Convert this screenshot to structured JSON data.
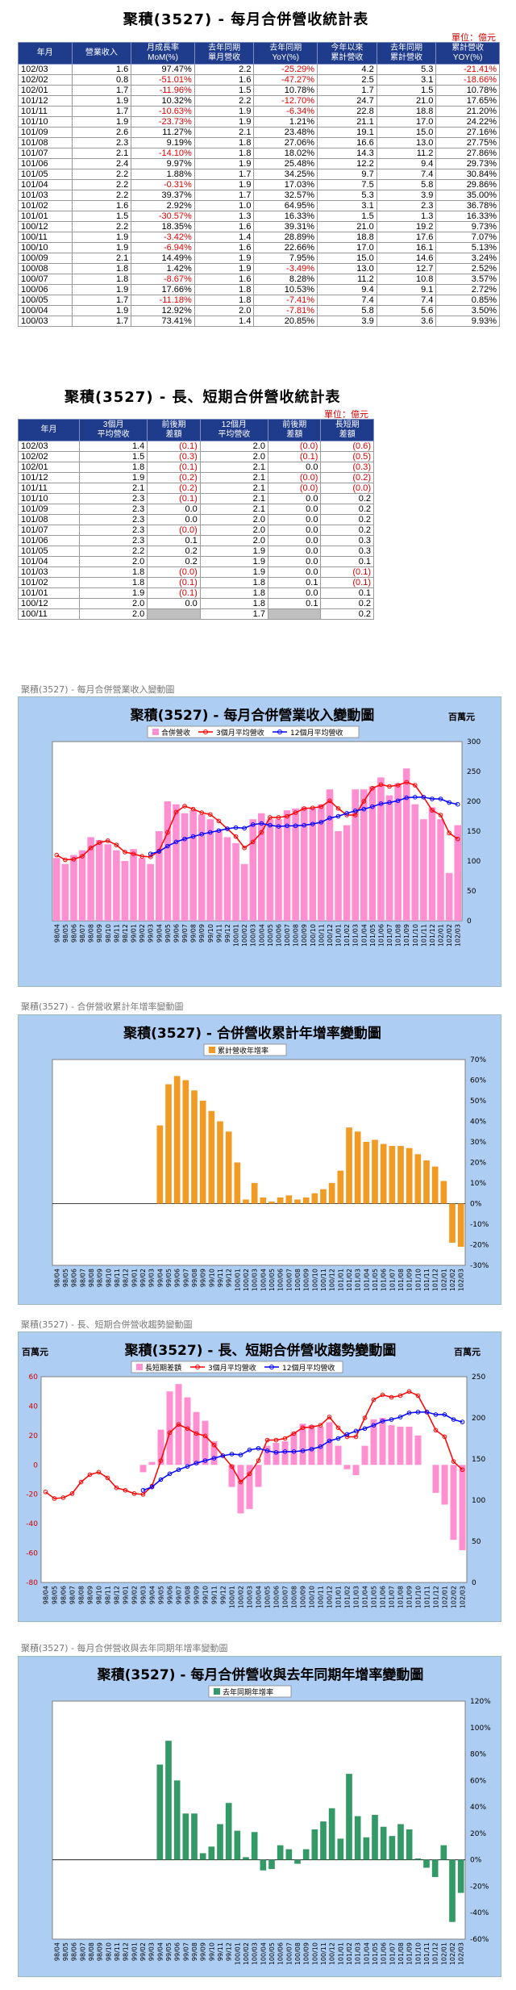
{
  "table1": {
    "title": "聚積(3527)  - 每月合併營收統計表",
    "unit": "單位：億元",
    "headers": [
      "年月",
      "營業收入",
      "月成長率\nMoM(%)",
      "去年同期\n單月營收",
      "去年同期\nYoY(%)",
      "今年以來\n累計營收",
      "去年同期\n累計營收",
      "累計營收\nYOY(%)"
    ],
    "rows": [
      [
        "102/03",
        "1.6",
        "97.47%",
        "2.2",
        "-25.29%",
        "4.2",
        "5.3",
        "-21.41%"
      ],
      [
        "102/02",
        "0.8",
        "-51.01%",
        "1.6",
        "-47.27%",
        "2.5",
        "3.1",
        "-18.66%"
      ],
      [
        "102/01",
        "1.7",
        "-11.96%",
        "1.5",
        "10.78%",
        "1.7",
        "1.5",
        "10.78%"
      ],
      [
        "101/12",
        "1.9",
        "10.32%",
        "2.2",
        "-12.70%",
        "24.7",
        "21.0",
        "17.65%"
      ],
      [
        "101/11",
        "1.7",
        "-10.63%",
        "1.9",
        "-6.34%",
        "22.8",
        "18.8",
        "21.20%"
      ],
      [
        "101/10",
        "1.9",
        "-23.73%",
        "1.9",
        "1.21%",
        "21.1",
        "17.0",
        "24.22%"
      ],
      [
        "101/09",
        "2.6",
        "11.27%",
        "2.1",
        "23.48%",
        "19.1",
        "15.0",
        "27.16%"
      ],
      [
        "101/08",
        "2.3",
        "9.19%",
        "1.8",
        "27.06%",
        "16.6",
        "13.0",
        "27.75%"
      ],
      [
        "101/07",
        "2.1",
        "-14.10%",
        "1.8",
        "18.02%",
        "14.3",
        "11.2",
        "27.86%"
      ],
      [
        "101/06",
        "2.4",
        "9.97%",
        "1.9",
        "25.48%",
        "12.2",
        "9.4",
        "29.73%"
      ],
      [
        "101/05",
        "2.2",
        "1.88%",
        "1.7",
        "34.25%",
        "9.7",
        "7.4",
        "30.84%"
      ],
      [
        "101/04",
        "2.2",
        "-0.31%",
        "1.9",
        "17.03%",
        "7.5",
        "5.8",
        "29.86%"
      ],
      [
        "101/03",
        "2.2",
        "39.37%",
        "1.7",
        "32.57%",
        "5.3",
        "3.9",
        "35.00%"
      ],
      [
        "101/02",
        "1.6",
        "2.92%",
        "1.0",
        "64.95%",
        "3.1",
        "2.3",
        "36.78%"
      ],
      [
        "101/01",
        "1.5",
        "-30.57%",
        "1.3",
        "16.33%",
        "1.5",
        "1.3",
        "16.33%"
      ],
      [
        "100/12",
        "2.2",
        "18.35%",
        "1.6",
        "39.31%",
        "21.0",
        "19.2",
        "9.73%"
      ],
      [
        "100/11",
        "1.9",
        "-3.42%",
        "1.4",
        "28.89%",
        "18.8",
        "17.6",
        "7.07%"
      ],
      [
        "100/10",
        "1.9",
        "-6.94%",
        "1.6",
        "22.66%",
        "17.0",
        "16.1",
        "5.13%"
      ],
      [
        "100/09",
        "2.1",
        "14.49%",
        "1.9",
        "7.95%",
        "15.0",
        "14.6",
        "3.24%"
      ],
      [
        "100/08",
        "1.8",
        "1.42%",
        "1.9",
        "-3.49%",
        "13.0",
        "12.7",
        "2.52%"
      ],
      [
        "100/07",
        "1.8",
        "-8.67%",
        "1.6",
        "8.28%",
        "11.2",
        "10.8",
        "3.57%"
      ],
      [
        "100/06",
        "1.9",
        "17.66%",
        "1.8",
        "10.53%",
        "9.4",
        "9.1",
        "2.72%"
      ],
      [
        "100/05",
        "1.7",
        "-11.18%",
        "1.8",
        "-7.41%",
        "7.4",
        "7.4",
        "0.85%"
      ],
      [
        "100/04",
        "1.9",
        "12.92%",
        "2.0",
        "-7.81%",
        "5.8",
        "5.6",
        "3.50%"
      ],
      [
        "100/03",
        "1.7",
        "73.41%",
        "1.4",
        "20.85%",
        "3.9",
        "3.6",
        "9.93%"
      ]
    ]
  },
  "table2": {
    "title": "聚積(3527)  - 長、短期合併營收統計表",
    "unit": "單位：億元",
    "headers": [
      "年月",
      "3個月\n平均營收",
      "前後期\n差額",
      "12個月\n平均營收",
      "前後期\n差額",
      "長短期\n差額"
    ],
    "rows": [
      [
        "102/03",
        "1.4",
        "(0.1)",
        "2.0",
        "(0.0)",
        "(0.6)"
      ],
      [
        "102/02",
        "1.5",
        "(0.3)",
        "2.0",
        "(0.1)",
        "(0.5)"
      ],
      [
        "102/01",
        "1.8",
        "(0.1)",
        "2.1",
        "0.0",
        "(0.3)"
      ],
      [
        "101/12",
        "1.9",
        "(0.2)",
        "2.1",
        "(0.0)",
        "(0.2)"
      ],
      [
        "101/11",
        "2.1",
        "(0.2)",
        "2.1",
        "(0.0)",
        "(0.0)"
      ],
      [
        "101/10",
        "2.3",
        "(0.1)",
        "2.1",
        "0.0",
        "0.2"
      ],
      [
        "101/09",
        "2.3",
        "0.0",
        "2.1",
        "0.0",
        "0.2"
      ],
      [
        "101/08",
        "2.3",
        "0.0",
        "2.0",
        "0.0",
        "0.2"
      ],
      [
        "101/07",
        "2.3",
        "(0.0)",
        "2.0",
        "0.0",
        "0.2"
      ],
      [
        "101/06",
        "2.3",
        "0.1",
        "2.0",
        "0.0",
        "0.3"
      ],
      [
        "101/05",
        "2.2",
        "0.2",
        "1.9",
        "0.0",
        "0.3"
      ],
      [
        "101/04",
        "2.0",
        "0.2",
        "1.9",
        "0.0",
        "0.1"
      ],
      [
        "101/03",
        "1.8",
        "(0.0)",
        "1.9",
        "0.0",
        "(0.1)"
      ],
      [
        "101/02",
        "1.8",
        "(0.1)",
        "1.8",
        "0.1",
        "(0.1)"
      ],
      [
        "101/01",
        "1.9",
        "(0.1)",
        "1.8",
        "0.0",
        "0.1"
      ],
      [
        "100/12",
        "2.0",
        "0.0",
        "1.8",
        "0.1",
        "0.2"
      ],
      [
        "100/11",
        "2.0",
        "",
        "1.7",
        "",
        "0.2"
      ]
    ]
  },
  "months": [
    "98/04",
    "98/05",
    "98/06",
    "98/07",
    "98/08",
    "98/09",
    "98/10",
    "98/11",
    "98/12",
    "99/01",
    "99/02",
    "99/03",
    "99/04",
    "99/05",
    "99/06",
    "99/07",
    "99/08",
    "99/09",
    "99/10",
    "99/11",
    "99/12",
    "100/01",
    "100/02",
    "100/03",
    "100/04",
    "100/05",
    "100/06",
    "100/07",
    "100/08",
    "100/09",
    "100/10",
    "100/11",
    "100/12",
    "101/01",
    "101/02",
    "101/03",
    "101/04",
    "101/05",
    "101/06",
    "101/07",
    "101/08",
    "101/09",
    "101/10",
    "101/11",
    "101/12",
    "102/01",
    "102/02",
    "102/03"
  ],
  "charts": {
    "c1": {
      "caption": "聚積(3527)  - 每月合併營業收入變動圖",
      "title": "聚積(3527)  - 每月合併營業收入變動圖",
      "unitlabel": "百萬元",
      "legend": [
        "合併營收",
        "3個月平均營收",
        "12個月平均營收"
      ]
    },
    "c2": {
      "caption": "聚積(3527)  -  合併營收累計年增率變動圖",
      "title": "聚積(3527)  - 合併營收累計年增率變動圖",
      "legend": [
        "累計營收年增率"
      ]
    },
    "c3": {
      "caption": "聚積(3527)  -  長、短期合併營收趨勢變動圖",
      "title": "聚積(3527)  - 長、短期合併營收趨勢變動圖",
      "unitlabel": "百萬元",
      "legend": [
        "長短期差額",
        "3個月平均營收",
        "12個月平均營收"
      ]
    },
    "c4": {
      "caption": "聚積(3527)  -  每月合併營收與去年同期年增率變動圖",
      "title": "聚積(3527)  - 每月合併營收與去年同期年增率變動圖",
      "legend": [
        "去年同期年增率"
      ]
    }
  },
  "chart_data": [
    {
      "type": "bar",
      "title": "聚積(3527)  - 每月合併營業收入變動圖",
      "ylim": [
        0,
        300
      ],
      "yticks": [
        0,
        50,
        100,
        150,
        200,
        250,
        300
      ],
      "series": [
        {
          "name": "合併營收",
          "kind": "bar",
          "color": "#ff8fd0",
          "values": [
            105,
            95,
            110,
            118,
            140,
            135,
            128,
            118,
            100,
            120,
            105,
            95,
            150,
            200,
            195,
            180,
            185,
            178,
            170,
            152,
            140,
            130,
            95,
            170,
            180,
            170,
            170,
            185,
            188,
            190,
            188,
            195,
            220,
            150,
            160,
            220,
            220,
            225,
            240,
            210,
            230,
            255,
            195,
            170,
            190,
            170,
            80,
            160
          ]
        },
        {
          "name": "3個月平均營收",
          "kind": "line",
          "color": "#ff0000",
          "values": [
            110,
            102,
            103,
            108,
            122,
            131,
            134,
            127,
            115,
            112,
            108,
            107,
            117,
            148,
            182,
            192,
            187,
            181,
            178,
            167,
            154,
            141,
            122,
            132,
            148,
            173,
            173,
            175,
            181,
            188,
            189,
            191,
            201,
            188,
            177,
            177,
            200,
            222,
            228,
            225,
            227,
            232,
            227,
            207,
            185,
            177,
            147,
            137
          ]
        },
        {
          "name": "12個月平均營收",
          "kind": "line",
          "color": "#0000ff",
          "values": [
            null,
            null,
            null,
            null,
            null,
            null,
            null,
            null,
            null,
            null,
            null,
            112,
            116,
            125,
            132,
            137,
            141,
            145,
            148,
            151,
            154,
            156,
            155,
            161,
            163,
            160,
            158,
            159,
            159,
            160,
            162,
            165,
            172,
            175,
            180,
            184,
            187,
            191,
            196,
            198,
            201,
            206,
            207,
            207,
            204,
            204,
            198,
            195
          ]
        }
      ]
    },
    {
      "type": "bar",
      "title": "聚積(3527)  - 合併營收累計年增率變動圖",
      "ylim": [
        -30,
        70
      ],
      "yticks": [
        -30,
        -20,
        -10,
        0,
        10,
        20,
        30,
        40,
        50,
        60,
        70
      ],
      "series": [
        {
          "name": "累計營收年增率",
          "color": "#f29b24",
          "values": [
            0,
            0,
            0,
            0,
            0,
            0,
            0,
            0,
            0,
            0,
            0,
            0,
            38,
            58,
            62,
            60,
            55,
            50,
            45,
            40,
            35,
            20,
            2,
            10,
            3,
            1,
            3,
            4,
            2,
            3,
            5,
            7,
            10,
            16,
            37,
            35,
            30,
            31,
            29,
            28,
            28,
            27,
            24,
            21,
            18,
            11,
            -19,
            -21
          ]
        }
      ]
    },
    {
      "type": "bar",
      "title": "聚積(3527)  - 長、短期合併營收趨勢變動圖",
      "ylim_left": [
        -80,
        60
      ],
      "ylim_right": [
        0,
        250
      ],
      "yticks_left": [
        -80,
        -60,
        -40,
        -20,
        0,
        20,
        40,
        60
      ],
      "yticks_right": [
        0,
        50,
        100,
        150,
        200,
        250
      ],
      "series": [
        {
          "name": "長短期差額",
          "kind": "bar",
          "axis": "left",
          "color": "#ff8fd0",
          "values": [
            0,
            0,
            0,
            0,
            0,
            0,
            0,
            0,
            0,
            0,
            0,
            -5,
            2,
            24,
            50,
            55,
            46,
            36,
            30,
            16,
            0,
            -15,
            -33,
            -30,
            -15,
            13,
            15,
            16,
            22,
            28,
            27,
            26,
            29,
            13,
            -3,
            -7,
            13,
            31,
            32,
            27,
            26,
            26,
            20,
            0,
            -19,
            -27,
            -51,
            -58
          ]
        },
        {
          "name": "3個月平均營收",
          "kind": "line",
          "axis": "right",
          "color": "#ff0000",
          "values": [
            110,
            102,
            103,
            108,
            122,
            131,
            134,
            127,
            115,
            112,
            108,
            107,
            117,
            148,
            182,
            192,
            187,
            181,
            178,
            167,
            154,
            141,
            122,
            132,
            148,
            173,
            173,
            175,
            181,
            188,
            189,
            191,
            201,
            188,
            177,
            177,
            200,
            222,
            228,
            225,
            227,
            232,
            227,
            207,
            185,
            177,
            147,
            137
          ]
        },
        {
          "name": "12個月平均營收",
          "kind": "line",
          "axis": "right",
          "color": "#0000ff",
          "values": [
            null,
            null,
            null,
            null,
            null,
            null,
            null,
            null,
            null,
            null,
            null,
            112,
            116,
            125,
            132,
            137,
            141,
            145,
            148,
            151,
            154,
            156,
            155,
            161,
            163,
            160,
            158,
            159,
            159,
            160,
            162,
            165,
            172,
            175,
            180,
            184,
            187,
            191,
            196,
            198,
            201,
            206,
            207,
            207,
            204,
            204,
            198,
            195
          ]
        }
      ]
    },
    {
      "type": "bar",
      "title": "聚積(3527)  - 每月合併營收與去年同期年增率變動圖",
      "ylim": [
        -60,
        120
      ],
      "yticks": [
        -60,
        -40,
        -20,
        0,
        20,
        40,
        60,
        80,
        100,
        120
      ],
      "series": [
        {
          "name": "去年同期年增率",
          "color": "#339966",
          "values": [
            0,
            0,
            0,
            0,
            0,
            0,
            0,
            0,
            0,
            0,
            0,
            0,
            72,
            90,
            60,
            35,
            35,
            5,
            10,
            27,
            43,
            22,
            2,
            21,
            -8,
            -7,
            11,
            8,
            -3,
            8,
            23,
            29,
            39,
            16,
            65,
            33,
            17,
            34,
            25,
            18,
            27,
            23,
            1,
            -6,
            -13,
            11,
            -47,
            -25
          ]
        }
      ]
    }
  ]
}
